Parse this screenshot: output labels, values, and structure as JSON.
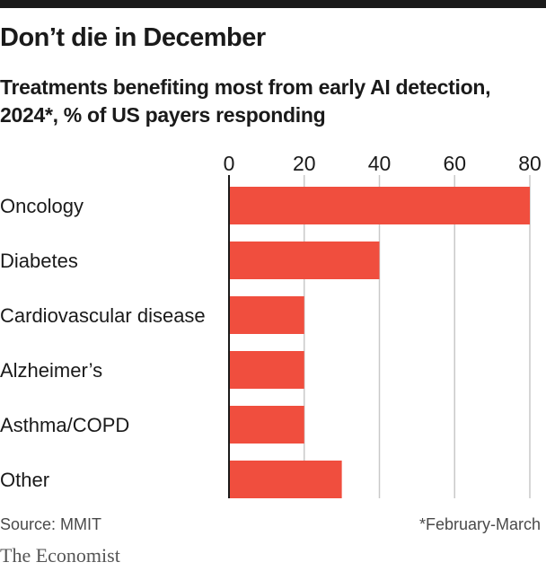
{
  "header": {
    "title": "Don’t die in December",
    "subtitle": "Treatments benefiting most from early AI detection, 2024*, % of US payers responding"
  },
  "chart_data": {
    "type": "bar",
    "orientation": "horizontal",
    "categories": [
      "Oncology",
      "Diabetes",
      "Cardiovascular disease",
      "Alzheimer’s",
      "Asthma/COPD",
      "Other"
    ],
    "values": [
      80,
      40,
      20,
      20,
      20,
      30
    ],
    "x_ticks": [
      "0",
      "20",
      "40",
      "60",
      "80"
    ],
    "xlim": [
      0,
      80
    ],
    "grid": true,
    "bar_color": "#f04e3e"
  },
  "footer": {
    "source": "Source: MMIT",
    "note": "*February-March",
    "brand": "The Economist"
  }
}
